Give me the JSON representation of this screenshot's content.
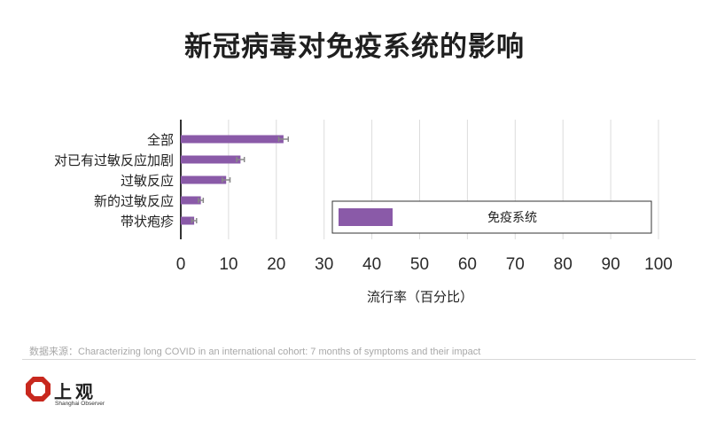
{
  "page_title": "新冠病毒对免疫系统的影响",
  "source_note": "数据来源：Characterizing long COVID in an international cohort: 7 months of symptoms and their impact",
  "logo": {
    "name": "上观",
    "subtitle": "Shanghai Observer"
  },
  "colors": {
    "bar": "#8a5aa8",
    "error_bar": "#888888",
    "grid": "#dcdcdc",
    "axis": "#333333"
  },
  "chart_data": {
    "type": "bar",
    "orientation": "horizontal",
    "title": "新冠病毒对免疫系统的影响",
    "xlabel": "流行率（百分比）",
    "ylabel": "",
    "xlim": [
      0,
      100
    ],
    "xticks": [
      0,
      10,
      20,
      30,
      40,
      50,
      60,
      70,
      80,
      90,
      100
    ],
    "grid": true,
    "legend_position": "bottom-right",
    "categories": [
      "全部",
      "对已有过敏反应加剧",
      "过敏反应",
      "新的过敏反应",
      "带状疱疹"
    ],
    "series": [
      {
        "name": "免疫系统",
        "values": [
          21.5,
          12.5,
          9.5,
          4.2,
          2.8
        ],
        "error": [
          1.0,
          0.8,
          0.8,
          0.5,
          0.5
        ]
      }
    ]
  }
}
